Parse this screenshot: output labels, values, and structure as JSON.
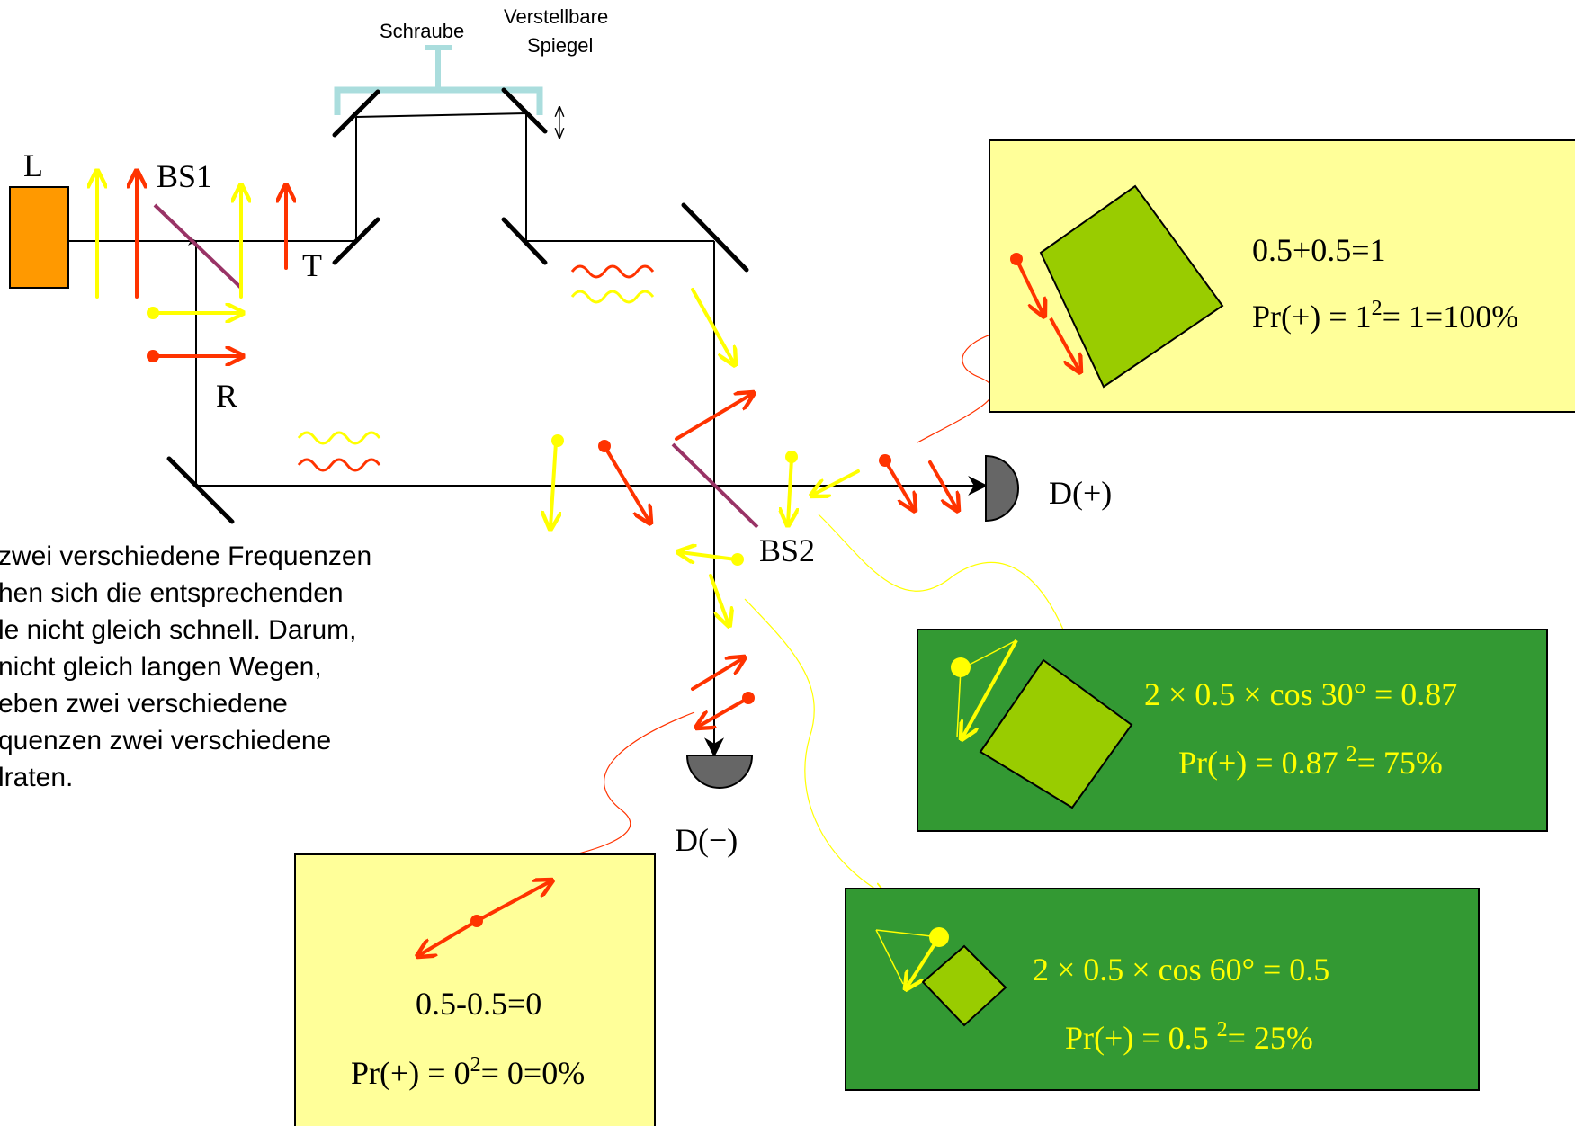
{
  "labels": {
    "laser": "L",
    "bs1": "BS1",
    "t": "T",
    "r": "R",
    "bs2": "BS2",
    "d_plus": "D(+)",
    "d_minus": "D(−)",
    "screw": "Schraube",
    "mirror_line1": "Verstellbare",
    "mirror_line2": "Spiegel",
    "adjust_arrow": "↕"
  },
  "description": [
    "zwei verschiedene Frequenzen",
    "hen sich die entsprechenden",
    "le nicht gleich schnell. Darum,",
    "nicht gleich langen Wegen,",
    "eben zwei verschiedene",
    "quenzen zwei verschiedene",
    "lraten."
  ],
  "boxes": {
    "top_right": {
      "line1": "0.5+0.5=1",
      "line2_prefix": "Pr(+) = 1",
      "line2_sup": "2",
      "line2_suffix": "= 1=100%"
    },
    "bottom_left": {
      "line1": "0.5-0.5=0",
      "line2_prefix": "Pr(+) = 0",
      "line2_sup": "2",
      "line2_suffix": "= 0=0%"
    },
    "green_mid": {
      "line1": "2 × 0.5 × cos 30°  = 0.87",
      "line2_prefix": "Pr(+) = 0.87 ",
      "line2_sup": "2",
      "line2_suffix": "= 75%"
    },
    "green_low": {
      "line1": "2 × 0.5 × cos 60°  = 0.5",
      "line2_prefix": "Pr(+) = 0.5 ",
      "line2_sup": "2",
      "line2_suffix": "= 25%"
    }
  },
  "colors": {
    "red": "#ff3300",
    "yellow": "#ffff00",
    "bracket": "#aadddd",
    "laser": "#ff9900",
    "beamsplitter": "#993366",
    "pale_yellow_box": "#ffff99",
    "green_box": "#339933",
    "square_green": "#99cc00",
    "detector": "#666666"
  }
}
